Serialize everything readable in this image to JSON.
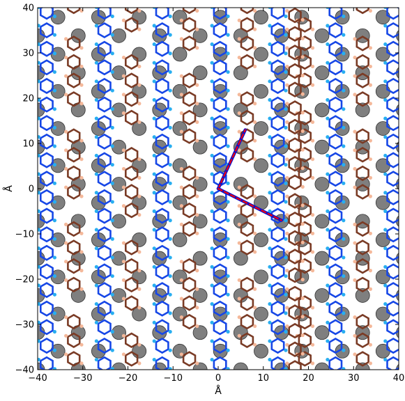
{
  "chart_data": {
    "type": "scatter",
    "title": "",
    "xlabel": "Å",
    "ylabel": "Å",
    "xlim": [
      -40,
      40
    ],
    "ylim": [
      -40,
      40
    ],
    "xticks": [
      -40,
      -30,
      -20,
      -10,
      0,
      10,
      20,
      30,
      40
    ],
    "yticks": [
      -40,
      -30,
      -20,
      -10,
      0,
      10,
      20,
      30,
      40
    ],
    "xtick_labels": [
      "−40",
      "−30",
      "−20",
      "−10",
      "0",
      "10",
      "20",
      "30",
      "40"
    ],
    "ytick_labels": [
      "−40",
      "−30",
      "−20",
      "−10",
      "0",
      "10",
      "20",
      "30",
      "40"
    ],
    "grid": false,
    "background_structure": {
      "description_visible": false,
      "row_spacing": 4.1,
      "large_grey_atoms": {
        "color": "#7f7f7f",
        "edge": "#333333",
        "radius": 1.55
      },
      "blue_rings": {
        "color": "#1747e6",
        "dot_color": "#28aef0",
        "column_spacing": 12.8,
        "x_offset": -38
      },
      "brown_rings": {
        "color": "#7a3b25",
        "dot_color": "#f4b89a",
        "column_spacing": 12.8,
        "x_offset": -32
      }
    },
    "lattice_vectors": [
      {
        "from": [
          0,
          0
        ],
        "to": [
          6,
          13
        ],
        "color": "#1010c8",
        "style": "solid"
      },
      {
        "from": [
          0,
          0
        ],
        "to": [
          6,
          13
        ],
        "color": "#ff0000",
        "style": "dashed"
      },
      {
        "from": [
          0,
          0
        ],
        "to": [
          14,
          -7
        ],
        "color": "#1010c8",
        "style": "solid"
      },
      {
        "from": [
          0,
          0
        ],
        "to": [
          14,
          -7
        ],
        "color": "#ff0000",
        "style": "dashed"
      }
    ],
    "colors": {
      "axis": "#000000",
      "grey_atom": "#7f7f7f",
      "blue_ring": "#1747e6",
      "cyan_atom": "#28aef0",
      "brown_ring": "#7a3b25",
      "peach_atom": "#f4b89a",
      "vector_blue": "#1010c8",
      "vector_red": "#ff0000"
    }
  }
}
